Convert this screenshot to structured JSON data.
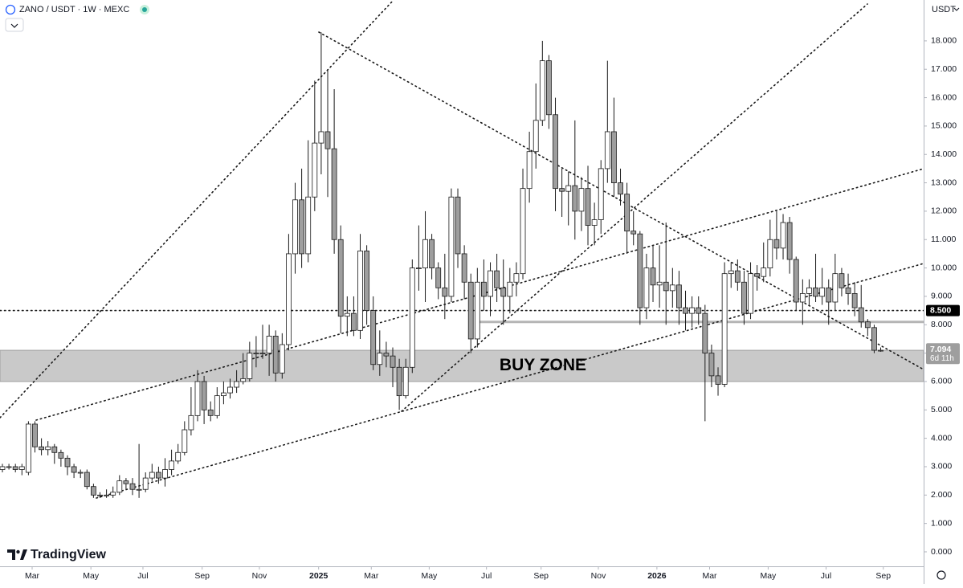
{
  "chart_data": {
    "type": "candlestick",
    "title": "ZANO / USDT · 1W · MEXC",
    "currency": "USDT",
    "brand": "TradingView",
    "up_color": "#ffffff",
    "down_color": "#9e9e9e",
    "wick_color": "#1a1a1a",
    "xlim": [
      -0.37,
      141.6
    ],
    "ylim": [
      -0.51,
      19.44
    ],
    "xticks": [
      {
        "value": 4.57,
        "label": "Mar"
      },
      {
        "value": 13.6,
        "label": "May"
      },
      {
        "value": 21.6,
        "label": "Jul"
      },
      {
        "value": 30.7,
        "label": "Sep"
      },
      {
        "value": 39.5,
        "label": "Nov"
      },
      {
        "value": 48.6,
        "label": "2025"
      },
      {
        "value": 56.7,
        "label": "Mar"
      },
      {
        "value": 65.6,
        "label": "May"
      },
      {
        "value": 74.4,
        "label": "Jul"
      },
      {
        "value": 82.8,
        "label": "Sep"
      },
      {
        "value": 91.6,
        "label": "Nov"
      },
      {
        "value": 100.6,
        "label": "2026"
      },
      {
        "value": 108.7,
        "label": "Mar"
      },
      {
        "value": 117.7,
        "label": "May"
      },
      {
        "value": 126.6,
        "label": "Jul"
      },
      {
        "value": 135.4,
        "label": "Sep"
      }
    ],
    "yticks": [
      {
        "value": 0,
        "label": "0.000"
      },
      {
        "value": 1,
        "label": "1.000"
      },
      {
        "value": 2,
        "label": "2.000"
      },
      {
        "value": 3,
        "label": "3.000"
      },
      {
        "value": 4,
        "label": "4.000"
      },
      {
        "value": 5,
        "label": "5.000"
      },
      {
        "value": 6,
        "label": "6.000"
      },
      {
        "value": 7,
        "label": "7.000"
      },
      {
        "value": 8,
        "label": "8.000"
      },
      {
        "value": 9,
        "label": "9.000"
      },
      {
        "value": 10,
        "label": "10.000"
      },
      {
        "value": 11,
        "label": "11.000"
      },
      {
        "value": 12,
        "label": "12.000"
      },
      {
        "value": 13,
        "label": "13.000"
      },
      {
        "value": 14,
        "label": "14.000"
      },
      {
        "value": 15,
        "label": "15.000"
      },
      {
        "value": 16,
        "label": "16.000"
      },
      {
        "value": 17,
        "label": "17.000"
      },
      {
        "value": 18,
        "label": "18.000"
      }
    ],
    "zone": {
      "label": "BUY ZONE",
      "low": 6.0,
      "high": 7.1
    },
    "level": {
      "value": 8.5,
      "label": "8.500"
    },
    "support_line": 8.1,
    "last_price": {
      "value": 7.094,
      "label": "7.094"
    },
    "countdown": "6d 11h",
    "x": [
      0,
      1,
      2,
      3,
      4,
      5,
      6,
      7,
      8,
      9,
      10,
      11,
      12,
      13,
      14,
      15,
      16,
      17,
      18,
      19,
      20,
      21,
      22,
      23,
      24,
      25,
      26,
      27,
      28,
      29,
      30,
      31,
      32,
      33,
      34,
      35,
      36,
      37,
      38,
      39,
      40,
      41,
      42,
      43,
      44,
      45,
      46,
      47,
      48,
      49,
      50,
      51,
      52,
      53,
      54,
      55,
      56,
      57,
      58,
      59,
      60,
      61,
      62,
      63,
      64,
      65,
      66,
      67,
      68,
      69,
      70,
      71,
      72,
      73,
      74,
      75,
      76,
      77,
      78,
      79,
      80,
      81,
      82,
      83,
      84,
      85,
      86,
      87,
      88,
      89,
      90,
      91,
      92,
      93,
      94,
      95,
      96,
      97,
      98,
      99,
      100,
      101,
      102,
      103,
      104,
      105,
      106,
      107,
      108,
      109,
      110,
      111,
      112,
      113,
      114,
      115,
      116,
      117,
      118,
      119,
      120,
      121,
      122,
      123,
      124,
      125,
      126,
      127,
      128,
      129,
      130,
      131,
      132,
      133,
      134,
      135
    ],
    "open": [
      2.9,
      3.0,
      3.0,
      2.9,
      2.8,
      4.5,
      3.7,
      3.6,
      3.7,
      3.5,
      3.3,
      3.0,
      2.8,
      2.8,
      2.3,
      2.0,
      2.0,
      2.0,
      2.1,
      2.5,
      2.4,
      2.2,
      2.2,
      2.6,
      2.8,
      2.6,
      2.9,
      3.2,
      3.5,
      4.3,
      4.8,
      6.0,
      5.0,
      4.8,
      5.5,
      5.6,
      5.8,
      6.0,
      6.1,
      7.0,
      7.0,
      7.0,
      7.6,
      6.3,
      7.3,
      10.5,
      12.4,
      10.5,
      12.5,
      14.4,
      14.8,
      14.2,
      11.0,
      8.3,
      8.4,
      7.8,
      10.6,
      8.5,
      6.6,
      7.0,
      6.9,
      6.5,
      5.5,
      6.5,
      10.0,
      10.0,
      11.0,
      10.0,
      9.3,
      9.0,
      12.5,
      10.5,
      9.5,
      7.5,
      9.5,
      9.0,
      9.9,
      9.3,
      9.0,
      9.5,
      9.8,
      12.8,
      14.1,
      15.2,
      17.3,
      15.4,
      12.8,
      12.7,
      12.9,
      12.0,
      12.8,
      11.5,
      11.7,
      13.5,
      14.8,
      13.0,
      12.6,
      11.3,
      11.2,
      8.6,
      10.0,
      9.4,
      9.5,
      9.2,
      9.4,
      8.6,
      8.4,
      8.6,
      8.4,
      7.0,
      6.2,
      5.9,
      9.8,
      9.9,
      9.5,
      8.4,
      9.8,
      9.7,
      10.0,
      11.0,
      10.7,
      11.6,
      10.3,
      8.8,
      9.1,
      9.3,
      9.0,
      9.3,
      8.8,
      9.8,
      9.3,
      9.1,
      8.6,
      8.1,
      7.9,
      7.1
    ],
    "high": [
      3.1,
      3.1,
      3.1,
      3.1,
      4.6,
      4.6,
      4.0,
      3.9,
      3.8,
      3.6,
      3.4,
      3.1,
      2.9,
      2.9,
      2.4,
      2.1,
      2.2,
      2.3,
      2.7,
      2.6,
      2.6,
      3.8,
      2.8,
      3.1,
      3.0,
      3.3,
      3.6,
      3.8,
      4.6,
      5.8,
      6.4,
      6.2,
      5.3,
      5.8,
      6.0,
      6.1,
      6.4,
      7.0,
      7.4,
      7.6,
      8.0,
      8.0,
      7.8,
      7.7,
      11.2,
      13.0,
      13.5,
      14.5,
      16.6,
      18.3,
      17.0,
      16.3,
      11.5,
      9.0,
      9.0,
      11.2,
      10.8,
      9.0,
      7.8,
      7.4,
      7.2,
      6.8,
      6.8,
      10.3,
      11.5,
      12.0,
      11.2,
      10.2,
      10.5,
      12.8,
      12.8,
      10.8,
      9.8,
      10.0,
      10.3,
      10.2,
      10.5,
      10.3,
      10.0,
      10.2,
      13.5,
      14.8,
      16.5,
      18.0,
      17.5,
      16.0,
      13.5,
      13.4,
      15.2,
      13.2,
      13.6,
      12.3,
      13.8,
      17.3,
      16.0,
      13.5,
      13.0,
      12.0,
      11.3,
      10.5,
      10.8,
      10.8,
      11.6,
      10.0,
      9.9,
      9.2,
      9.0,
      9.0,
      8.7,
      7.3,
      6.5,
      10.2,
      10.2,
      10.3,
      9.9,
      10.2,
      10.1,
      10.9,
      11.7,
      12.0,
      11.9,
      11.8,
      10.4,
      9.6,
      9.6,
      10.5,
      10.0,
      9.6,
      10.5,
      10.0,
      9.8,
      9.5,
      9.4,
      8.2,
      8.0,
      7.2
    ],
    "low": [
      2.8,
      2.9,
      2.8,
      2.7,
      2.7,
      3.5,
      3.4,
      3.4,
      3.1,
      3.0,
      2.7,
      2.6,
      2.6,
      2.2,
      1.9,
      1.9,
      1.9,
      1.9,
      2.0,
      2.2,
      2.0,
      1.9,
      2.1,
      2.5,
      2.4,
      2.3,
      2.7,
      3.1,
      3.4,
      4.1,
      4.6,
      4.5,
      4.6,
      4.7,
      5.2,
      5.4,
      5.6,
      5.9,
      6.0,
      6.5,
      6.8,
      6.2,
      6.0,
      6.1,
      7.1,
      9.8,
      10.0,
      10.2,
      12.0,
      13.3,
      12.5,
      10.5,
      7.7,
      7.6,
      7.6,
      7.5,
      8.0,
      6.4,
      6.2,
      6.5,
      5.8,
      5.0,
      5.4,
      6.3,
      9.2,
      8.8,
      9.6,
      8.9,
      8.2,
      8.8,
      10.0,
      8.9,
      7.0,
      7.2,
      8.5,
      8.3,
      8.8,
      8.0,
      8.4,
      9.0,
      9.6,
      12.3,
      13.5,
      15.0,
      14.9,
      12.0,
      11.8,
      11.5,
      11.0,
      11.3,
      10.8,
      10.8,
      11.2,
      13.0,
      12.5,
      12.2,
      10.5,
      10.8,
      8.0,
      8.2,
      8.8,
      8.6,
      8.0,
      8.6,
      8.0,
      7.8,
      7.9,
      8.0,
      4.6,
      5.8,
      5.5,
      5.8,
      9.3,
      9.2,
      8.0,
      8.2,
      9.2,
      9.5,
      9.7,
      10.3,
      10.3,
      9.8,
      8.5,
      8.0,
      8.7,
      8.8,
      8.7,
      8.0,
      8.5,
      9.0,
      8.7,
      8.3,
      7.9,
      7.6,
      7.0,
      7.05
    ],
    "close": [
      3.0,
      3.0,
      2.9,
      3.0,
      4.5,
      3.7,
      3.6,
      3.7,
      3.5,
      3.3,
      3.0,
      2.8,
      2.8,
      2.3,
      2.0,
      2.0,
      2.0,
      2.1,
      2.5,
      2.4,
      2.2,
      2.2,
      2.6,
      2.8,
      2.6,
      2.9,
      3.2,
      3.5,
      4.3,
      4.8,
      6.0,
      5.0,
      4.8,
      5.5,
      5.6,
      5.8,
      6.0,
      6.1,
      7.0,
      7.0,
      7.0,
      7.6,
      6.3,
      7.3,
      10.5,
      12.4,
      10.5,
      12.5,
      14.4,
      14.8,
      14.2,
      11.0,
      8.3,
      8.4,
      7.8,
      10.6,
      8.5,
      6.6,
      7.0,
      6.9,
      6.5,
      5.5,
      6.5,
      10.0,
      10.0,
      11.0,
      10.0,
      9.3,
      9.0,
      12.5,
      10.5,
      9.5,
      7.5,
      9.5,
      9.0,
      9.9,
      9.3,
      9.0,
      9.5,
      9.8,
      12.8,
      14.1,
      15.2,
      17.3,
      15.4,
      12.8,
      12.7,
      12.9,
      12.0,
      12.8,
      11.5,
      11.7,
      13.5,
      14.8,
      13.0,
      12.6,
      11.3,
      11.2,
      8.6,
      10.0,
      9.4,
      9.5,
      9.2,
      9.4,
      8.6,
      8.4,
      8.6,
      8.4,
      7.0,
      6.2,
      5.9,
      9.8,
      9.9,
      9.5,
      8.4,
      9.8,
      9.7,
      10.0,
      11.0,
      10.7,
      11.6,
      10.3,
      8.8,
      9.1,
      9.3,
      9.0,
      9.3,
      8.8,
      9.8,
      9.3,
      9.1,
      8.6,
      8.1,
      7.9,
      7.1,
      7.094
    ]
  }
}
